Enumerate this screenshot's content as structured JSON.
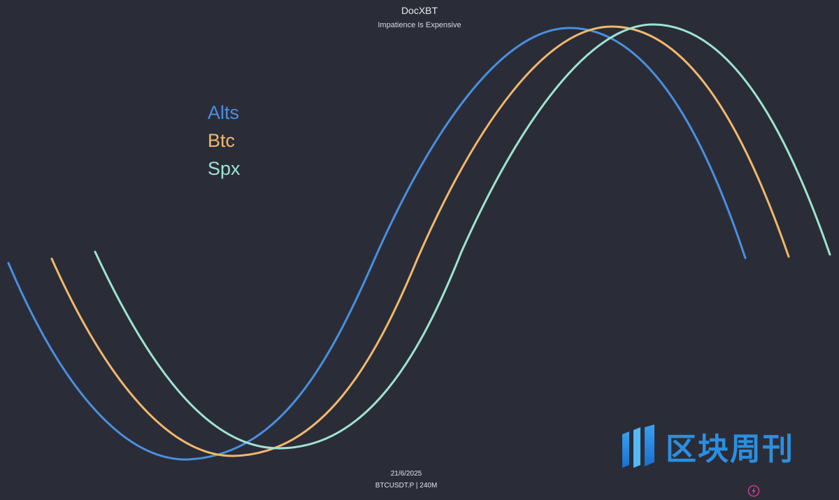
{
  "header": {
    "title": "DocXBT",
    "subtitle": "Impatience Is Expensive"
  },
  "legend": [
    {
      "name": "Alts",
      "color": "#4a8fe0"
    },
    {
      "name": "Btc",
      "color": "#f2b86b"
    },
    {
      "name": "Spx",
      "color": "#9fe3d0"
    }
  ],
  "footer": {
    "date": "21/6/2025",
    "symbol": "BTCUSDT.P | 240M"
  },
  "watermark": {
    "text": "区块周刊",
    "icon": "bar-logo-icon",
    "color": "#2b8fe0"
  },
  "corner_icon": "spark-circle-icon",
  "chart_data": {
    "type": "line",
    "title": "DocXBT",
    "subtitle": "Impatience Is Expensive",
    "grid": false,
    "legend_position": "left",
    "series": [
      {
        "name": "Alts",
        "color": "#4a8fe0",
        "shape": "sine-like cycle",
        "phase_lead": 0
      },
      {
        "name": "Btc",
        "color": "#f2b86b",
        "shape": "sine-like cycle",
        "phase_lag_rank": 1
      },
      {
        "name": "Spx",
        "color": "#9fe3d0",
        "shape": "sine-like cycle",
        "phase_lag_rank": 2
      }
    ]
  }
}
